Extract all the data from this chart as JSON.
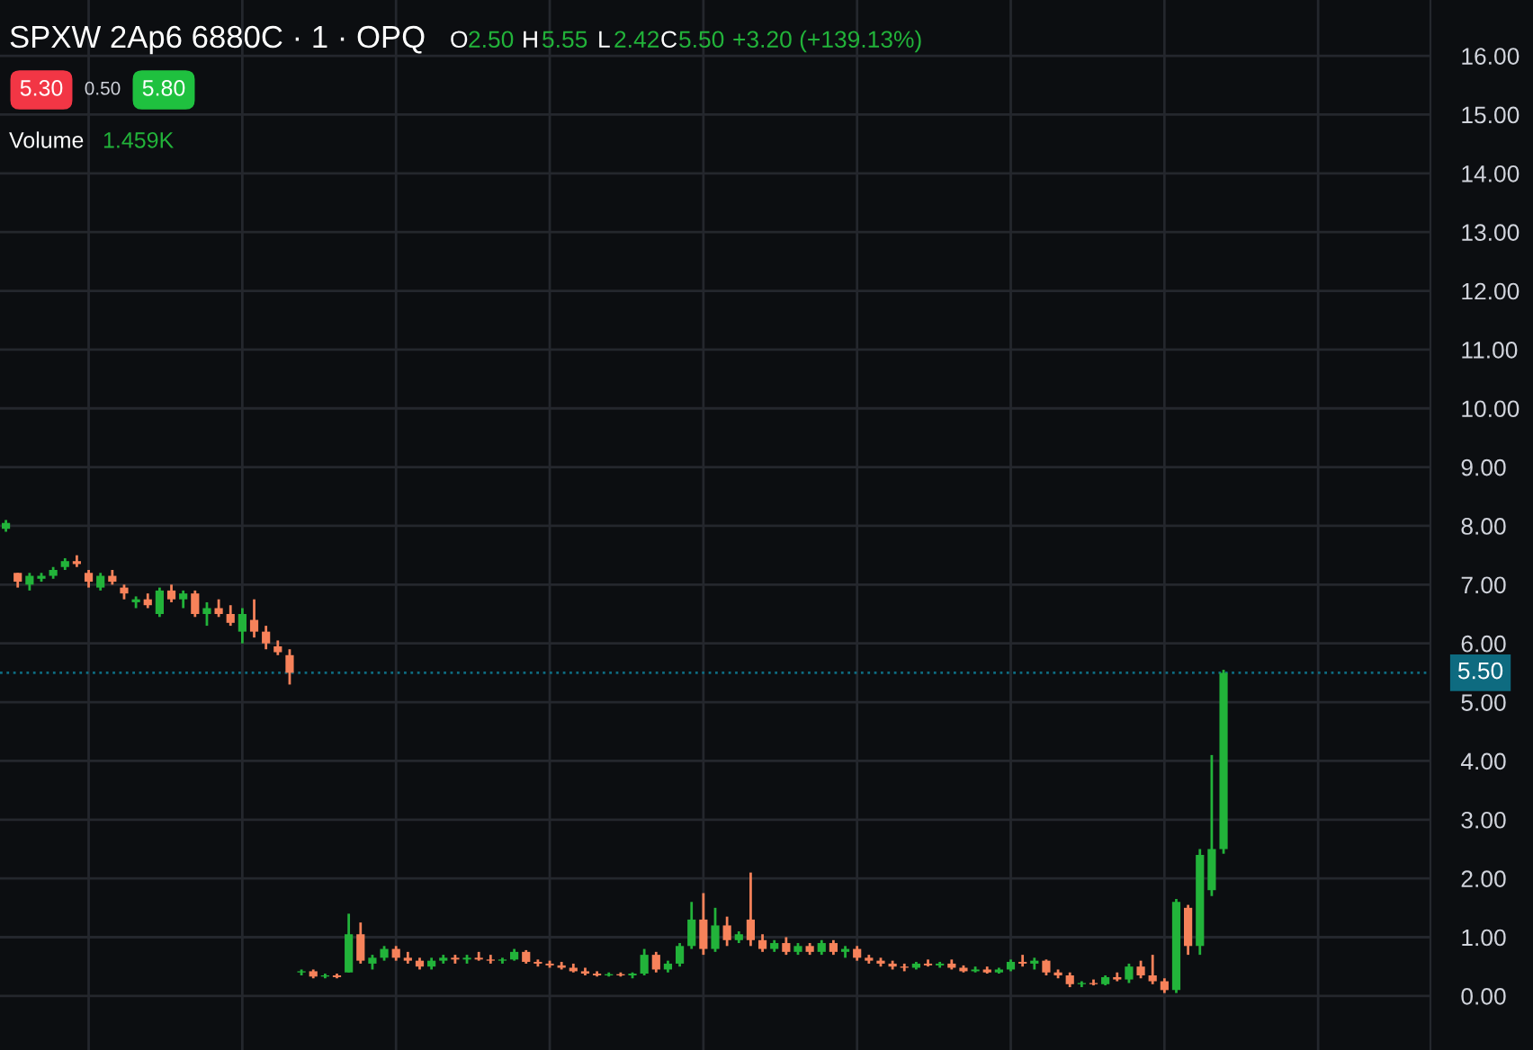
{
  "chart_data": {
    "type": "candlestick",
    "title": "SPXW 2Ap6 6880C · 1 · OPQ",
    "annotations": [
      "O",
      "2.50",
      "H",
      "5.55",
      "L",
      "2.42",
      "C",
      "5.50",
      "+3.20 (+139.13%)",
      "5.30",
      "0.50",
      "5.80",
      "Volume",
      "1.459K"
    ],
    "categories": [
      null,
      null,
      null,
      null,
      null,
      null,
      null,
      null,
      null,
      null,
      null,
      null,
      null,
      null,
      null,
      null,
      null,
      null,
      null,
      null,
      null,
      null,
      null,
      null,
      null,
      null,
      null,
      null,
      null,
      null,
      null,
      null,
      null,
      null,
      null,
      null,
      null,
      null,
      null,
      null,
      null,
      null,
      null,
      null,
      null,
      null,
      null,
      null,
      null,
      null,
      null,
      null,
      null,
      null,
      null,
      null,
      null,
      null,
      null,
      null,
      null,
      null,
      null,
      null,
      null,
      null,
      null,
      null,
      null,
      null,
      null,
      null,
      null,
      null,
      null,
      null,
      null,
      null,
      null,
      null,
      null,
      null,
      null,
      null,
      null,
      null,
      null,
      null,
      null,
      null,
      null,
      null,
      null,
      null,
      null,
      null,
      null,
      null,
      null,
      null,
      null,
      null,
      null,
      null,
      null,
      null,
      null,
      null,
      null,
      null,
      null,
      null,
      null,
      null,
      null,
      null,
      null,
      null,
      null,
      null,
      null
    ],
    "ohlc": [
      [
        7.95,
        8.1,
        7.9,
        8.05
      ],
      [
        7.2,
        7.2,
        6.95,
        7.05
      ],
      [
        7.0,
        7.2,
        6.9,
        7.15
      ],
      [
        7.1,
        7.2,
        7.05,
        7.15
      ],
      [
        7.15,
        7.3,
        7.1,
        7.25
      ],
      [
        7.3,
        7.45,
        7.25,
        7.4
      ],
      [
        7.4,
        7.5,
        7.3,
        7.35
      ],
      [
        7.2,
        7.25,
        6.95,
        7.05
      ],
      [
        6.95,
        7.2,
        6.9,
        7.15
      ],
      [
        7.15,
        7.25,
        7.0,
        7.05
      ],
      [
        6.95,
        7.0,
        6.75,
        6.85
      ],
      [
        6.7,
        6.8,
        6.6,
        6.75
      ],
      [
        6.75,
        6.85,
        6.6,
        6.65
      ],
      [
        6.5,
        6.95,
        6.45,
        6.9
      ],
      [
        6.9,
        7.0,
        6.7,
        6.75
      ],
      [
        6.75,
        6.9,
        6.6,
        6.85
      ],
      [
        6.85,
        6.9,
        6.45,
        6.5
      ],
      [
        6.5,
        6.7,
        6.3,
        6.6
      ],
      [
        6.6,
        6.75,
        6.45,
        6.5
      ],
      [
        6.5,
        6.65,
        6.3,
        6.35
      ],
      [
        6.2,
        6.6,
        6.0,
        6.5
      ],
      [
        6.4,
        6.75,
        6.1,
        6.2
      ],
      [
        6.2,
        6.3,
        5.9,
        6.0
      ],
      [
        5.95,
        6.05,
        5.8,
        5.85
      ],
      [
        5.8,
        5.9,
        5.3,
        5.5
      ],
      [
        0.4,
        0.45,
        0.35,
        0.42
      ],
      [
        0.42,
        0.45,
        0.3,
        0.33
      ],
      [
        0.33,
        0.38,
        0.3,
        0.35
      ],
      [
        0.35,
        0.38,
        0.3,
        0.32
      ],
      [
        0.4,
        1.4,
        0.4,
        1.05
      ],
      [
        1.05,
        1.25,
        0.55,
        0.6
      ],
      [
        0.55,
        0.7,
        0.45,
        0.65
      ],
      [
        0.65,
        0.85,
        0.6,
        0.8
      ],
      [
        0.8,
        0.85,
        0.6,
        0.65
      ],
      [
        0.65,
        0.75,
        0.55,
        0.6
      ],
      [
        0.6,
        0.65,
        0.45,
        0.5
      ],
      [
        0.5,
        0.65,
        0.45,
        0.6
      ],
      [
        0.6,
        0.7,
        0.55,
        0.65
      ],
      [
        0.65,
        0.7,
        0.55,
        0.62
      ],
      [
        0.62,
        0.7,
        0.55,
        0.65
      ],
      [
        0.65,
        0.75,
        0.6,
        0.62
      ],
      [
        0.62,
        0.7,
        0.55,
        0.6
      ],
      [
        0.6,
        0.65,
        0.55,
        0.62
      ],
      [
        0.62,
        0.8,
        0.6,
        0.75
      ],
      [
        0.75,
        0.78,
        0.55,
        0.58
      ],
      [
        0.58,
        0.62,
        0.5,
        0.55
      ],
      [
        0.55,
        0.6,
        0.48,
        0.52
      ],
      [
        0.52,
        0.58,
        0.45,
        0.48
      ],
      [
        0.48,
        0.55,
        0.4,
        0.42
      ],
      [
        0.42,
        0.48,
        0.35,
        0.38
      ],
      [
        0.38,
        0.42,
        0.33,
        0.35
      ],
      [
        0.35,
        0.4,
        0.33,
        0.37
      ],
      [
        0.37,
        0.4,
        0.33,
        0.35
      ],
      [
        0.35,
        0.4,
        0.3,
        0.38
      ],
      [
        0.38,
        0.8,
        0.35,
        0.7
      ],
      [
        0.7,
        0.75,
        0.4,
        0.45
      ],
      [
        0.45,
        0.6,
        0.4,
        0.55
      ],
      [
        0.55,
        0.9,
        0.5,
        0.85
      ],
      [
        0.85,
        1.6,
        0.8,
        1.3
      ],
      [
        1.3,
        1.75,
        0.7,
        0.8
      ],
      [
        0.8,
        1.5,
        0.75,
        1.2
      ],
      [
        1.2,
        1.35,
        0.85,
        0.95
      ],
      [
        0.95,
        1.1,
        0.9,
        1.05
      ],
      [
        1.3,
        2.1,
        0.85,
        0.95
      ],
      [
        0.95,
        1.05,
        0.75,
        0.8
      ],
      [
        0.8,
        0.95,
        0.75,
        0.9
      ],
      [
        0.9,
        1.0,
        0.7,
        0.75
      ],
      [
        0.75,
        0.9,
        0.7,
        0.85
      ],
      [
        0.85,
        0.9,
        0.7,
        0.75
      ],
      [
        0.75,
        0.95,
        0.7,
        0.9
      ],
      [
        0.9,
        0.95,
        0.7,
        0.75
      ],
      [
        0.75,
        0.85,
        0.65,
        0.8
      ],
      [
        0.8,
        0.85,
        0.6,
        0.65
      ],
      [
        0.65,
        0.7,
        0.55,
        0.6
      ],
      [
        0.6,
        0.65,
        0.5,
        0.55
      ],
      [
        0.55,
        0.6,
        0.45,
        0.5
      ],
      [
        0.5,
        0.55,
        0.42,
        0.48
      ],
      [
        0.48,
        0.58,
        0.45,
        0.55
      ],
      [
        0.55,
        0.62,
        0.5,
        0.52
      ],
      [
        0.52,
        0.58,
        0.48,
        0.55
      ],
      [
        0.55,
        0.62,
        0.45,
        0.48
      ],
      [
        0.48,
        0.52,
        0.4,
        0.42
      ],
      [
        0.42,
        0.5,
        0.4,
        0.45
      ],
      [
        0.45,
        0.5,
        0.38,
        0.4
      ],
      [
        0.4,
        0.48,
        0.38,
        0.45
      ],
      [
        0.45,
        0.62,
        0.42,
        0.58
      ],
      [
        0.58,
        0.7,
        0.5,
        0.55
      ],
      [
        0.55,
        0.65,
        0.45,
        0.6
      ],
      [
        0.6,
        0.62,
        0.35,
        0.4
      ],
      [
        0.4,
        0.45,
        0.3,
        0.35
      ],
      [
        0.35,
        0.4,
        0.15,
        0.2
      ],
      [
        0.2,
        0.25,
        0.15,
        0.22
      ],
      [
        0.22,
        0.28,
        0.18,
        0.2
      ],
      [
        0.2,
        0.35,
        0.18,
        0.32
      ],
      [
        0.32,
        0.4,
        0.25,
        0.28
      ],
      [
        0.28,
        0.55,
        0.22,
        0.5
      ],
      [
        0.5,
        0.6,
        0.3,
        0.35
      ],
      [
        0.35,
        0.7,
        0.2,
        0.25
      ],
      [
        0.25,
        0.3,
        0.05,
        0.1
      ],
      [
        0.1,
        1.65,
        0.05,
        1.6
      ],
      [
        1.5,
        1.55,
        0.7,
        0.85
      ],
      [
        0.85,
        2.5,
        0.7,
        2.4
      ],
      [
        1.8,
        4.1,
        1.7,
        2.5
      ],
      [
        2.5,
        5.55,
        2.42,
        5.5
      ],
      null,
      null,
      null,
      null,
      null,
      null,
      null,
      null,
      null,
      null,
      null,
      null,
      null,
      null,
      null,
      null,
      null
    ],
    "colors": [
      "#22b33a",
      "#f7825a",
      "#22b33a",
      "#22b33a",
      "#22b33a",
      "#22b33a",
      "#f7825a",
      "#f7825a",
      "#22b33a",
      "#f7825a",
      "#f7825a",
      "#22b33a",
      "#f7825a",
      "#22b33a",
      "#f7825a",
      "#22b33a",
      "#f7825a",
      "#22b33a",
      "#f7825a",
      "#f7825a",
      "#22b33a",
      "#f7825a",
      "#f7825a",
      "#f7825a",
      "#f7825a",
      "#22b33a",
      "#f7825a",
      "#22b33a",
      "#f7825a",
      "#22b33a",
      "#f7825a",
      "#22b33a",
      "#22b33a",
      "#f7825a",
      "#f7825a",
      "#f7825a",
      "#22b33a",
      "#22b33a",
      "#f7825a",
      "#22b33a",
      "#f7825a",
      "#f7825a",
      "#22b33a",
      "#22b33a",
      "#f7825a",
      "#f7825a",
      "#f7825a",
      "#f7825a",
      "#f7825a",
      "#f7825a",
      "#f7825a",
      "#22b33a",
      "#f7825a",
      "#22b33a",
      "#22b33a",
      "#f7825a",
      "#22b33a",
      "#22b33a",
      "#22b33a",
      "#f7825a",
      "#22b33a",
      "#f7825a",
      "#22b33a",
      "#f7825a",
      "#f7825a",
      "#22b33a",
      "#f7825a",
      "#22b33a",
      "#f7825a",
      "#22b33a",
      "#f7825a",
      "#22b33a",
      "#f7825a",
      "#f7825a",
      "#f7825a",
      "#f7825a",
      "#f7825a",
      "#22b33a",
      "#f7825a",
      "#22b33a",
      "#f7825a",
      "#f7825a",
      "#22b33a",
      "#f7825a",
      "#22b33a",
      "#22b33a",
      "#f7825a",
      "#22b33a",
      "#f7825a",
      "#f7825a",
      "#f7825a",
      "#22b33a",
      "#f7825a",
      "#22b33a",
      "#f7825a",
      "#22b33a",
      "#f7825a",
      "#f7825a",
      "#f7825a",
      "#22b33a",
      "#f7825a",
      "#22b33a",
      "#22b33a",
      "#22b33a",
      null,
      null,
      null,
      null,
      null,
      null,
      null,
      null,
      null,
      null,
      null,
      null,
      null,
      null,
      null,
      null,
      null
    ],
    "ylim": [
      -0.92,
      16.95
    ],
    "yticks": [
      {
        "value": 0,
        "label": "0.00"
      },
      {
        "value": 1,
        "label": "1.00"
      },
      {
        "value": 2,
        "label": "2.00"
      },
      {
        "value": 3,
        "label": "3.00"
      },
      {
        "value": 4,
        "label": "4.00"
      },
      {
        "value": 5,
        "label": "5.00"
      },
      {
        "value": 6,
        "label": "6.00"
      },
      {
        "value": 7,
        "label": "7.00"
      },
      {
        "value": 8,
        "label": "8.00"
      },
      {
        "value": 9,
        "label": "9.00"
      },
      {
        "value": 10,
        "label": "10.00"
      },
      {
        "value": 11,
        "label": "11.00"
      },
      {
        "value": 12,
        "label": "12.00"
      },
      {
        "value": 13,
        "label": "13.00"
      },
      {
        "value": 14,
        "label": "14.00"
      },
      {
        "value": 15,
        "label": "15.00"
      },
      {
        "value": 16,
        "label": "16.00"
      }
    ],
    "ref_lines": [
      {
        "axis": "y",
        "value": 5.5,
        "label": "5.50",
        "color": "#0e6b80",
        "line_style": "dotted"
      }
    ],
    "grid": true,
    "tick_labels": "y",
    "legend": false
  }
}
